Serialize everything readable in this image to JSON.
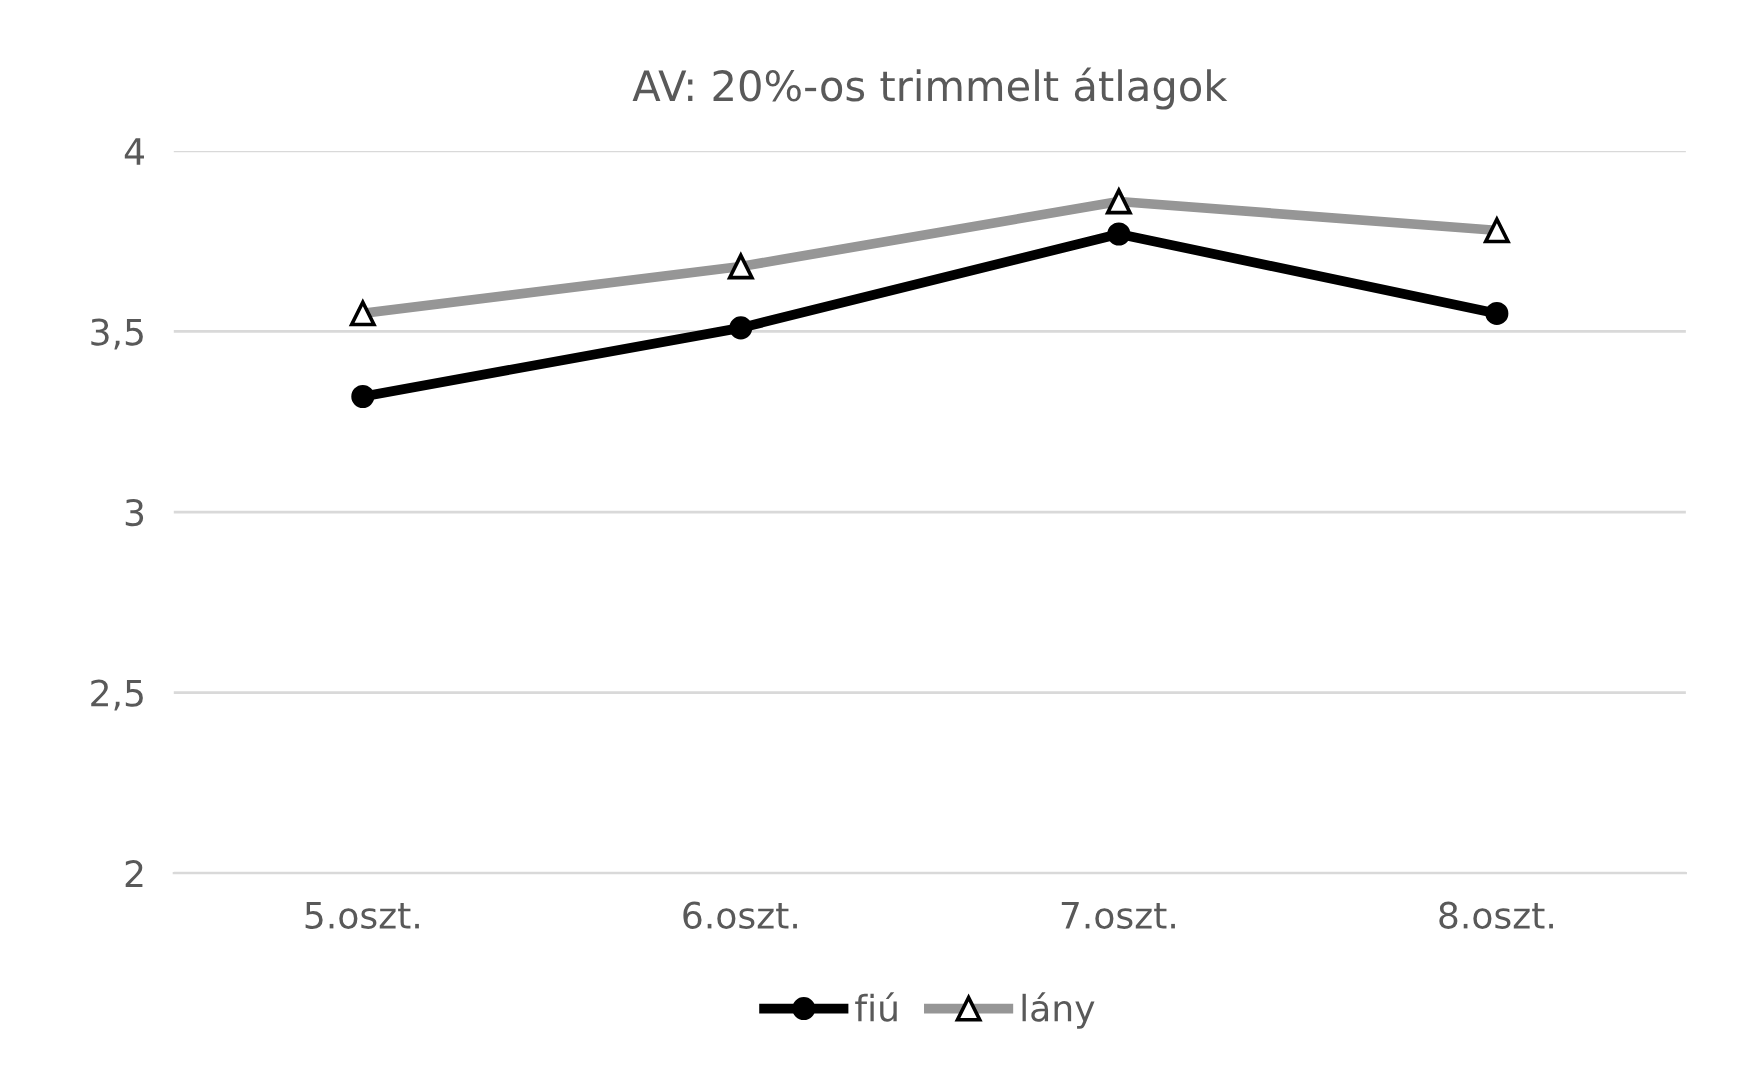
{
  "chart_data": {
    "type": "line",
    "title": "AV: 20%-os trimmelt átlagok",
    "categories": [
      "5.oszt.",
      "6.oszt.",
      "7.oszt.",
      "8.oszt."
    ],
    "series": [
      {
        "name": "fiú",
        "color": "#000000",
        "values": [
          3.32,
          3.51,
          3.77,
          3.55
        ],
        "marker": "circle"
      },
      {
        "name": "lány",
        "color": "#969696",
        "values": [
          3.55,
          3.68,
          3.86,
          3.78
        ],
        "marker": "triangle"
      }
    ],
    "ylim": [
      2,
      4
    ],
    "yticks": [
      {
        "value": 2,
        "label": "2"
      },
      {
        "value": 2.5,
        "label": "2,5"
      },
      {
        "value": 3,
        "label": "3"
      },
      {
        "value": 3.5,
        "label": "3,5"
      },
      {
        "value": 4,
        "label": "4"
      }
    ],
    "grid": "y",
    "legend": "bottom",
    "line_style": "solid"
  }
}
